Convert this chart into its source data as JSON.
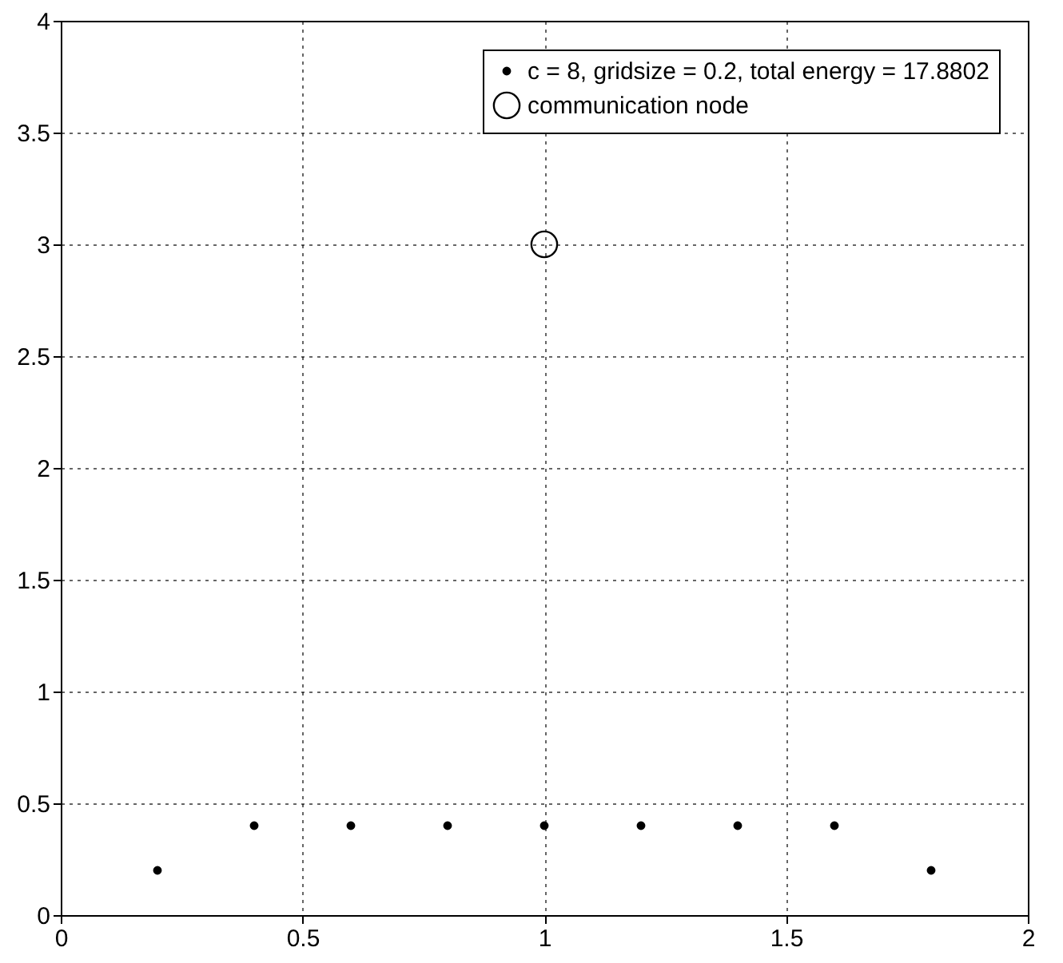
{
  "chart_data": {
    "type": "scatter",
    "x": [
      0.2,
      0.4,
      0.6,
      0.8,
      1.0,
      1.2,
      1.4,
      1.6,
      1.8
    ],
    "series": [
      {
        "name": "c = 8, gridsize = 0.2, total energy = 17.8802",
        "color": "#000000",
        "marker": "circle",
        "values": [
          0.2,
          0.4,
          0.4,
          0.4,
          0.4,
          0.4,
          0.4,
          0.4,
          0.2
        ]
      },
      {
        "name": "communication node",
        "color": "#000000",
        "marker": "circle",
        "x": [
          1.0
        ],
        "values": [
          3.0
        ]
      }
    ],
    "xlim": [
      0,
      2
    ],
    "xticks": [
      0,
      0.5,
      1,
      1.5,
      2
    ],
    "ylim": [
      0,
      4
    ],
    "yticks": [
      0,
      0.5,
      1,
      1.5,
      2,
      2.5,
      3,
      3.5,
      4
    ],
    "grid": true,
    "legend": "top right"
  }
}
